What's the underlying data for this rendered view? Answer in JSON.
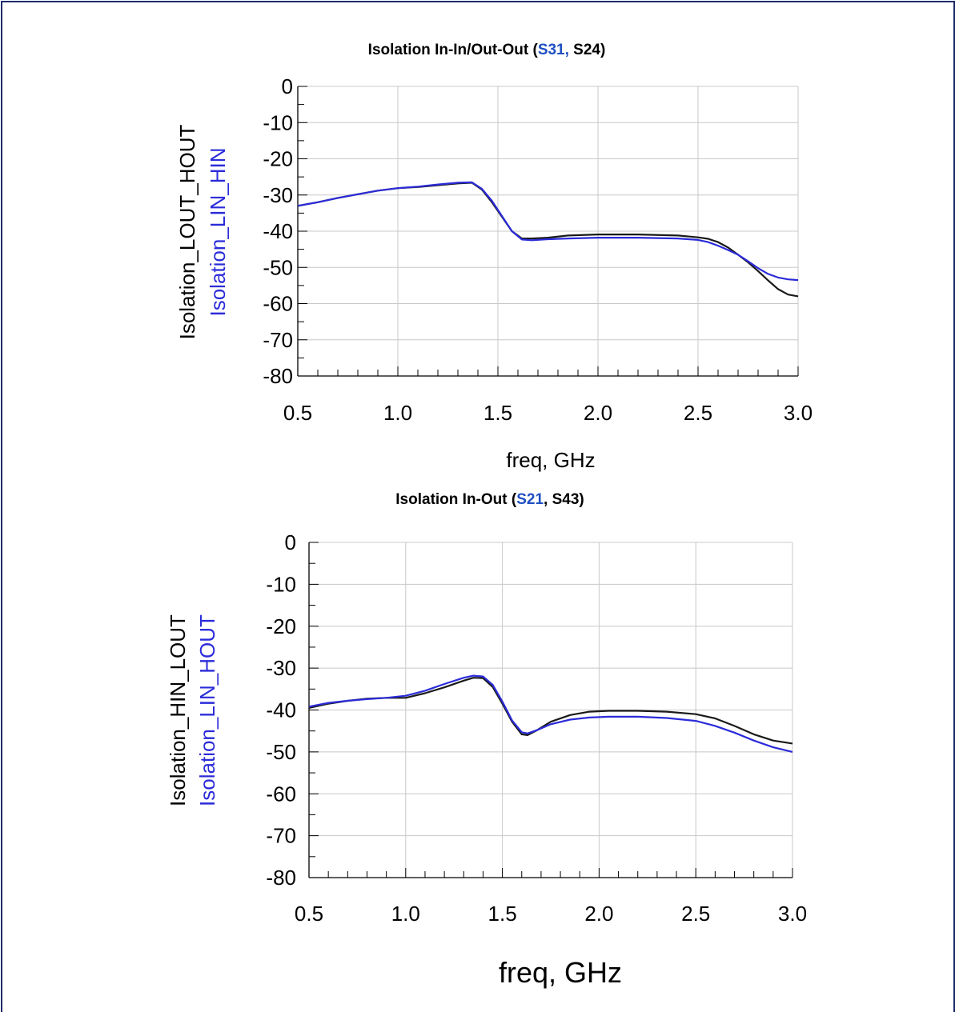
{
  "colors": {
    "black_series": "#1a1a1a",
    "blue_series": "#2b2bd9",
    "grid": "#c8c8c8",
    "frame": "#1f2d6b"
  },
  "chart_data": [
    {
      "type": "line",
      "title_parts": [
        {
          "text": "Isolation In-In/Out-Out (",
          "color": "#000000"
        },
        {
          "text": "S31,",
          "color": "#1f4fc2"
        },
        {
          "text": " S24)",
          "color": "#000000"
        }
      ],
      "xlabel": "freq, GHz",
      "ylabels": [
        {
          "text": "Isolation_LOUT_HOUT",
          "color": "#000000"
        },
        {
          "text": "Isolation_LIN_HIN",
          "color": "#2b2bd9"
        }
      ],
      "xlim": [
        0.5,
        3.0
      ],
      "ylim": [
        -80,
        0
      ],
      "xticks": [
        "0.5",
        "1.0",
        "1.5",
        "2.0",
        "2.5",
        "3.0"
      ],
      "yticks": [
        "0",
        "-10",
        "-20",
        "-30",
        "-40",
        "-50",
        "-60",
        "-70",
        "-80"
      ],
      "grid": true,
      "series": [
        {
          "color": "#1a1a1a",
          "x": [
            0.5,
            0.6,
            0.7,
            0.8,
            0.9,
            1.0,
            1.1,
            1.2,
            1.3,
            1.37,
            1.42,
            1.47,
            1.52,
            1.57,
            1.62,
            1.67,
            1.75,
            1.85,
            2.0,
            2.2,
            2.4,
            2.5,
            2.55,
            2.6,
            2.65,
            2.7,
            2.75,
            2.8,
            2.85,
            2.9,
            2.95,
            3.0
          ],
          "y": [
            -33,
            -32,
            -30.8,
            -29.8,
            -28.8,
            -28.1,
            -27.8,
            -27.3,
            -26.8,
            -26.6,
            -28.5,
            -32,
            -36,
            -40,
            -42,
            -42,
            -41.8,
            -41.2,
            -40.9,
            -40.9,
            -41.2,
            -41.7,
            -42.1,
            -43,
            -44.5,
            -46.5,
            -48.6,
            -51,
            -53.6,
            -56,
            -57.5,
            -58
          ]
        },
        {
          "color": "#2b2bd9",
          "x": [
            0.5,
            0.6,
            0.7,
            0.8,
            0.9,
            1.0,
            1.1,
            1.2,
            1.3,
            1.37,
            1.42,
            1.47,
            1.52,
            1.57,
            1.62,
            1.67,
            1.75,
            1.85,
            2.0,
            2.2,
            2.4,
            2.5,
            2.55,
            2.6,
            2.65,
            2.7,
            2.75,
            2.8,
            2.85,
            2.9,
            2.95,
            3.0
          ],
          "y": [
            -33,
            -32,
            -30.8,
            -29.8,
            -28.8,
            -28.1,
            -27.7,
            -27.1,
            -26.6,
            -26.5,
            -28.3,
            -31.6,
            -35.8,
            -40,
            -42.3,
            -42.5,
            -42.2,
            -42,
            -41.8,
            -41.8,
            -42,
            -42.4,
            -43,
            -44,
            -45.2,
            -46.5,
            -48.3,
            -50.2,
            -51.8,
            -52.8,
            -53.3,
            -53.5
          ]
        }
      ]
    },
    {
      "type": "line",
      "title_parts": [
        {
          "text": "Isolation In-Out (",
          "color": "#000000"
        },
        {
          "text": "S21",
          "color": "#1f4fc2"
        },
        {
          "text": ", S43)",
          "color": "#000000"
        }
      ],
      "xlabel": "freq, GHz",
      "ylabels": [
        {
          "text": "Isolation_HIN_LOUT",
          "color": "#000000"
        },
        {
          "text": "Isolation_LIN_HOUT",
          "color": "#2b2bd9"
        }
      ],
      "xlim": [
        0.5,
        3.0
      ],
      "ylim": [
        -80,
        0
      ],
      "xticks": [
        "0.5",
        "1.0",
        "1.5",
        "2.0",
        "2.5",
        "3.0"
      ],
      "yticks": [
        "0",
        "-10",
        "-20",
        "-30",
        "-40",
        "-50",
        "-60",
        "-70",
        "-80"
      ],
      "grid": true,
      "series": [
        {
          "color": "#1a1a1a",
          "x": [
            0.5,
            0.6,
            0.7,
            0.8,
            0.9,
            1.0,
            1.1,
            1.2,
            1.3,
            1.35,
            1.4,
            1.45,
            1.5,
            1.55,
            1.6,
            1.63,
            1.68,
            1.75,
            1.85,
            1.95,
            2.05,
            2.2,
            2.35,
            2.5,
            2.6,
            2.7,
            2.8,
            2.9,
            3.0
          ],
          "y": [
            -39.5,
            -38.5,
            -37.8,
            -37.3,
            -37.1,
            -37.1,
            -36,
            -34.6,
            -33,
            -32.3,
            -32.4,
            -34.5,
            -38.5,
            -42.8,
            -45.8,
            -46,
            -44.8,
            -42.8,
            -41.2,
            -40.4,
            -40.2,
            -40.2,
            -40.4,
            -41,
            -42,
            -43.8,
            -45.8,
            -47.3,
            -48
          ]
        },
        {
          "color": "#2b2bd9",
          "x": [
            0.5,
            0.6,
            0.7,
            0.8,
            0.9,
            1.0,
            1.1,
            1.2,
            1.3,
            1.35,
            1.4,
            1.45,
            1.5,
            1.55,
            1.6,
            1.63,
            1.68,
            1.75,
            1.85,
            1.95,
            2.05,
            2.2,
            2.35,
            2.5,
            2.6,
            2.7,
            2.8,
            2.9,
            3.0
          ],
          "y": [
            -39.2,
            -38.3,
            -37.8,
            -37.4,
            -37.1,
            -36.6,
            -35.4,
            -33.8,
            -32.3,
            -31.8,
            -32,
            -34,
            -38,
            -42.5,
            -45.3,
            -45.6,
            -44.8,
            -43.4,
            -42.3,
            -41.8,
            -41.6,
            -41.6,
            -41.9,
            -42.6,
            -43.8,
            -45.4,
            -47.3,
            -48.9,
            -50
          ]
        }
      ]
    }
  ]
}
